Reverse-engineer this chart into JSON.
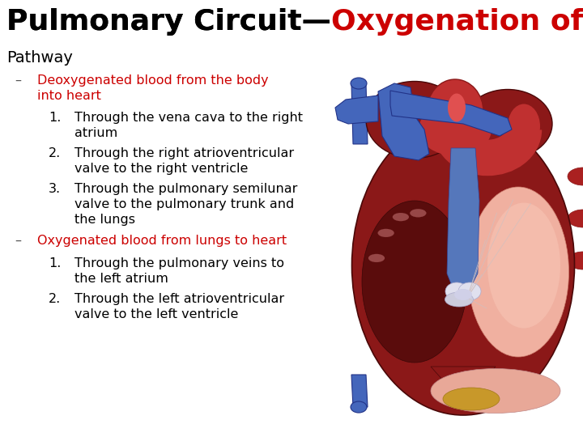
{
  "title_black": "Pulmonary Circuit—",
  "title_red": "Oxygenation of Blood",
  "subtitle": "Pathway",
  "background_color": "#ffffff",
  "title_fontsize": 26,
  "subtitle_fontsize": 14,
  "bullet_fontsize": 11.5,
  "bullet1_color": "#cc0000",
  "bullet2_color": "#cc0000",
  "text_color": "#000000",
  "dash_color": "#555555",
  "bullet1_header": "Deoxygenated blood from the body\ninto heart",
  "bullet1_items": [
    "Through the vena cava to the right\natrium",
    "Through the right atrioventricular\nvalve to the right ventricle",
    "Through the pulmonary semilunar\nvalve to the pulmonary trunk and\nthe lungs"
  ],
  "bullet2_header": "Oxygenated blood from lungs to heart",
  "bullet2_items": [
    "Through the pulmonary veins to\nthe left atrium",
    "Through the left atrioventricular\nvalve to the left ventricle"
  ],
  "heart_colors": {
    "outer_body": "#8B1818",
    "outer_edge": "#4A0808",
    "rv_interior": "#5A0C0C",
    "lv_interior": "#F0B0A0",
    "lv_edge": "#D08070",
    "aorta": "#C03030",
    "aorta_edge": "#8B1818",
    "pulm_artery": "#4466BB",
    "pulm_artery_edge": "#223388",
    "svc": "#4466BB",
    "ivc": "#4466BB",
    "septum_blue": "#5577BB",
    "septum_edge": "#334499",
    "valve_white": "#E8E8F0",
    "fat_pad": "#C8982A",
    "fat_edge": "#A07818",
    "pv_red": "#AA2020",
    "trabeculae": "#C07070",
    "tissue_pink": "#E8A898",
    "dark_red": "#3A0808"
  }
}
